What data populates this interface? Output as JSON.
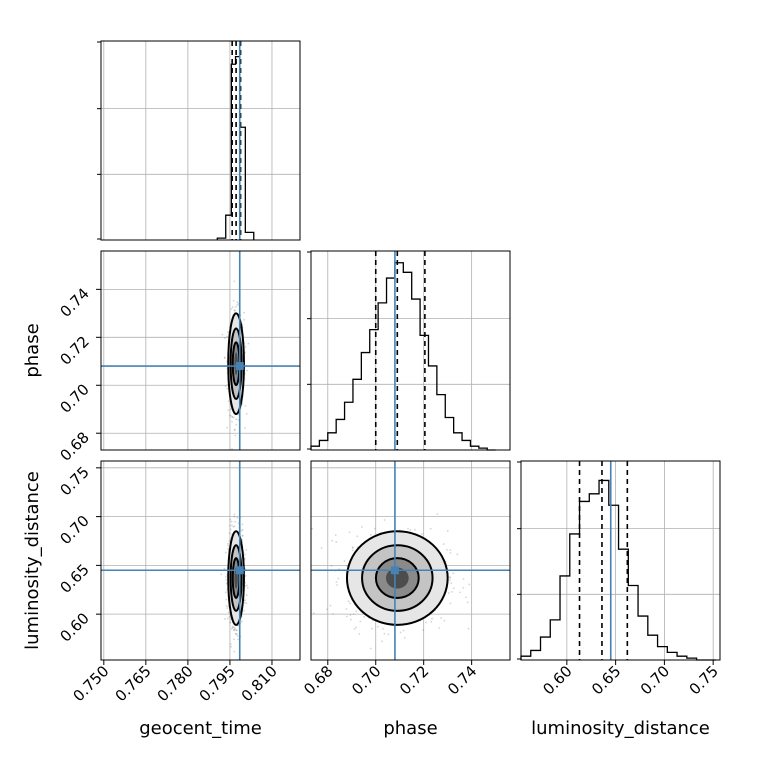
{
  "chart_data": {
    "type": "corner",
    "parameters": [
      "geocent_time",
      "phase",
      "luminosity_distance"
    ],
    "axis_labels": [
      "geocent_time",
      "phase",
      "luminosity_distance"
    ],
    "ranges": {
      "geocent_time": [
        0.749,
        0.82
      ],
      "phase": [
        0.673,
        0.756
      ],
      "luminosity_distance": [
        0.553,
        0.757
      ]
    },
    "ticks": {
      "geocent_time": [
        0.75,
        0.765,
        0.78,
        0.795,
        0.81
      ],
      "phase": [
        0.68,
        0.7,
        0.72,
        0.74
      ],
      "luminosity_distance": [
        0.6,
        0.65,
        0.7,
        0.75
      ]
    },
    "tick_labels": {
      "geocent_time": [
        "0.750",
        "0.765",
        "0.780",
        "0.795",
        "0.810"
      ],
      "phase": [
        "0.68",
        "0.70",
        "0.72",
        "0.74"
      ],
      "luminosity_distance": [
        "0.60",
        "0.65",
        "0.70",
        "0.75"
      ]
    },
    "truths": {
      "geocent_time": 0.7985,
      "phase": 0.708,
      "luminosity_distance": 0.645
    },
    "quantiles": {
      "geocent_time": [
        0.7958,
        0.7972,
        0.7988
      ],
      "phase": [
        0.7,
        0.709,
        0.7205
      ],
      "luminosity_distance": [
        0.613,
        0.636,
        0.662
      ]
    },
    "histograms": {
      "geocent_time": {
        "edges": [
          0.7905,
          0.7935,
          0.7955,
          0.797,
          0.7985,
          0.8005,
          0.8035
        ],
        "counts": [
          0.01,
          0.13,
          0.92,
          0.96,
          0.59,
          0.04
        ]
      },
      "phase": {
        "edges": [
          0.673,
          0.6765,
          0.68,
          0.6835,
          0.687,
          0.6905,
          0.694,
          0.6975,
          0.701,
          0.7045,
          0.708,
          0.7115,
          0.715,
          0.7185,
          0.722,
          0.7255,
          0.729,
          0.7325,
          0.736,
          0.7395,
          0.743,
          0.7465,
          0.75
        ],
        "counts": [
          0.02,
          0.05,
          0.09,
          0.16,
          0.25,
          0.37,
          0.51,
          0.63,
          0.77,
          0.9,
          0.98,
          0.93,
          0.79,
          0.6,
          0.44,
          0.29,
          0.17,
          0.09,
          0.05,
          0.02,
          0.01,
          0.0
        ]
      },
      "luminosity_distance": {
        "edges": [
          0.553,
          0.563,
          0.573,
          0.583,
          0.593,
          0.603,
          0.613,
          0.623,
          0.633,
          0.643,
          0.653,
          0.663,
          0.673,
          0.683,
          0.693,
          0.703,
          0.713,
          0.723,
          0.733,
          0.743,
          0.753
        ],
        "counts": [
          0.02,
          0.05,
          0.12,
          0.21,
          0.44,
          0.66,
          0.83,
          0.87,
          0.94,
          0.81,
          0.58,
          0.39,
          0.23,
          0.13,
          0.07,
          0.04,
          0.02,
          0.01,
          0.0,
          0.0
        ]
      }
    },
    "scatter_color": "#888888",
    "truth_color": "#4682b4",
    "line_color": "#000000",
    "grid": true
  }
}
